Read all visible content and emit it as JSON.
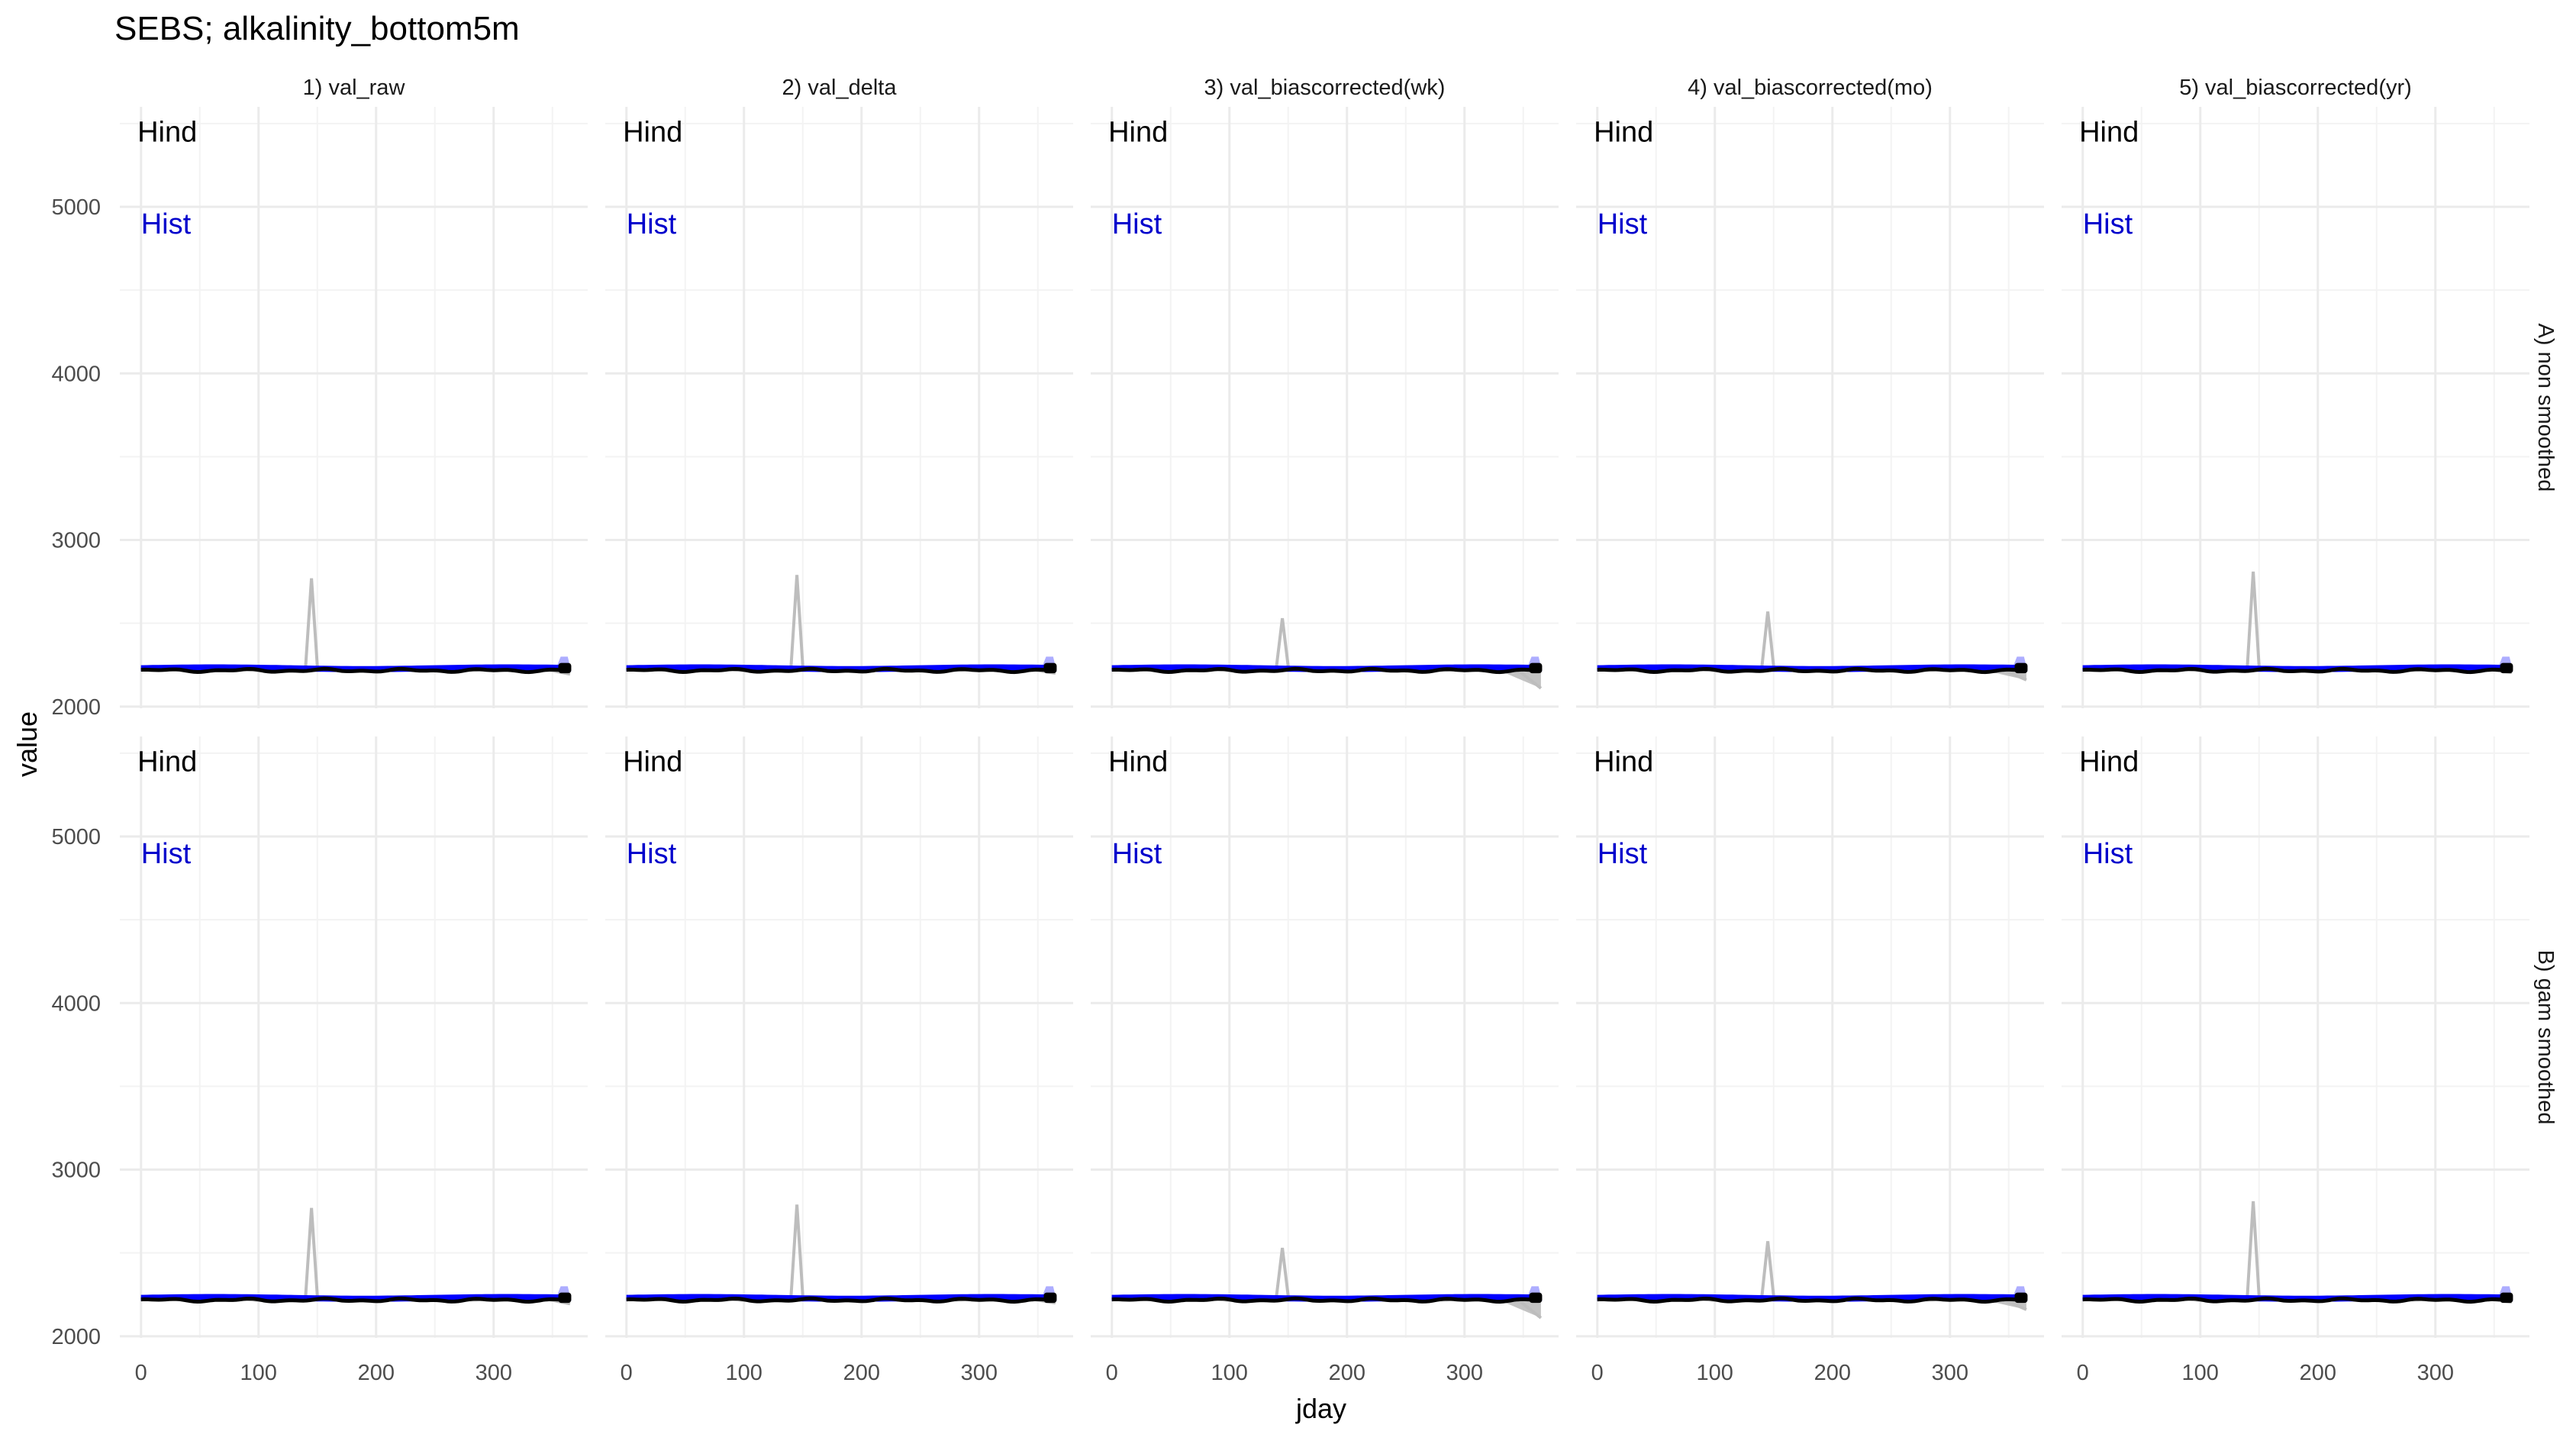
{
  "chart_data": {
    "type": "line",
    "title": "SEBS; alkalinity_bottom5m",
    "xlabel": "jday",
    "ylabel": "value",
    "xlim": [
      -18,
      380
    ],
    "ylim": [
      1990,
      5600
    ],
    "x_ticks": [
      0,
      100,
      200,
      300
    ],
    "y_ticks": [
      2000,
      3000,
      4000,
      5000
    ],
    "columns": [
      "1) val_raw",
      "2) val_delta",
      "3) val_biascorrected(wk)",
      "4) val_biascorrected(mo)",
      "5) val_biascorrected(yr)"
    ],
    "rows": [
      "A) non smoothed",
      "B) gam smoothed"
    ],
    "annotations": [
      {
        "text": "Hind",
        "x": -3,
        "y": 5450,
        "color": "#000000"
      },
      {
        "text": "Hist",
        "x": 0,
        "y": 4900,
        "color": "#0000cc"
      }
    ],
    "colors": {
      "hind": "#000000",
      "hist": "#0000ff",
      "hist_ribbon": "#9999ff",
      "ensemble": "#bdbdbd",
      "grid": "#ebebeb"
    },
    "grid": true,
    "hind_level": 2225,
    "hist_level": 2230,
    "spike_jday": 145,
    "spike_peaks": [
      2770,
      2790,
      2530,
      2570,
      2810
    ],
    "end_dip": [
      2195,
      2200,
      2110,
      2160,
      2205
    ]
  },
  "page": {
    "title": "SEBS; alkalinity_bottom5m",
    "xlabel": "jday",
    "ylabel": "value",
    "rows": [
      "A) non smoothed",
      "B) gam smoothed"
    ],
    "columns": [
      "1) val_raw",
      "2) val_delta",
      "3) val_biascorrected(wk)",
      "4) val_biascorrected(mo)",
      "5) val_biascorrected(yr)"
    ],
    "hind_label": "Hind",
    "hist_label": "Hist"
  }
}
